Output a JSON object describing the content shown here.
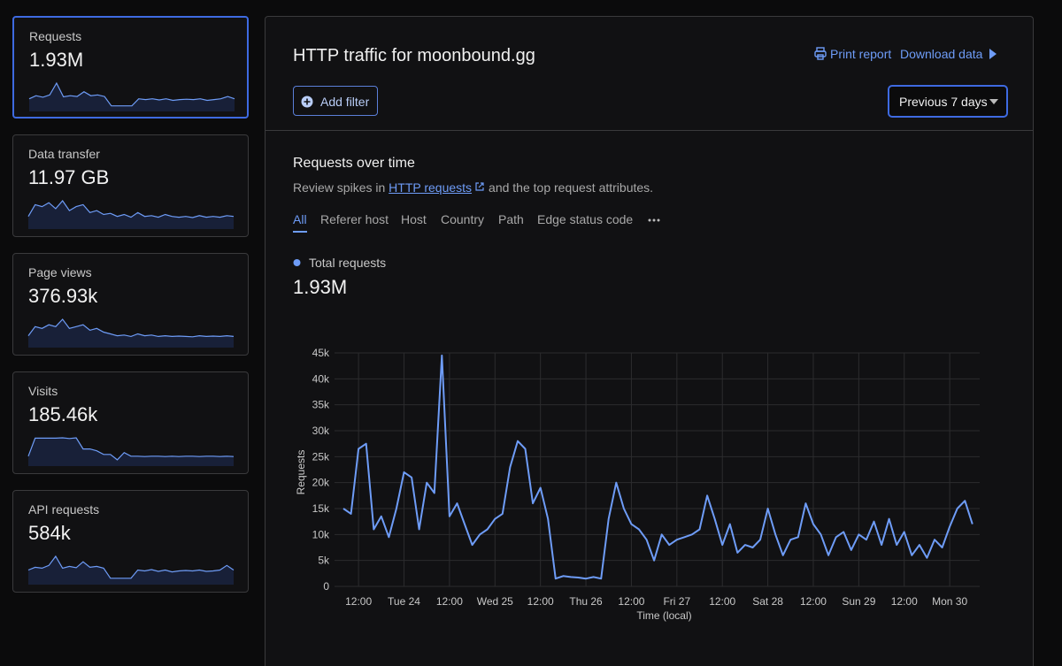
{
  "sidebar": {
    "cards": [
      {
        "label": "Requests",
        "value": "1.93M",
        "sparkline": [
          30,
          38,
          34,
          40,
          70,
          35,
          38,
          36,
          48,
          38,
          40,
          36,
          12,
          12,
          12,
          12,
          30,
          28,
          30,
          27,
          30,
          26,
          28,
          29,
          28,
          30,
          26,
          28,
          30,
          36,
          30
        ]
      },
      {
        "label": "Data transfer",
        "value": "11.97 GB",
        "sparkline": [
          30,
          60,
          55,
          65,
          50,
          70,
          45,
          55,
          60,
          40,
          45,
          35,
          38,
          30,
          35,
          28,
          40,
          30,
          32,
          28,
          35,
          30,
          28,
          30,
          27,
          32,
          28,
          30,
          28,
          32,
          30
        ]
      },
      {
        "label": "Page views",
        "value": "376.93k",
        "sparkline": [
          30,
          55,
          50,
          60,
          55,
          75,
          50,
          55,
          60,
          45,
          50,
          40,
          35,
          30,
          32,
          28,
          35,
          30,
          32,
          28,
          30,
          28,
          29,
          28,
          27,
          30,
          28,
          29,
          28,
          30,
          28
        ]
      },
      {
        "label": "Visits",
        "value": "185.46k",
        "sparkline": [
          25,
          75,
          75,
          75,
          75,
          76,
          74,
          76,
          45,
          45,
          40,
          30,
          30,
          15,
          35,
          25,
          25,
          24,
          25,
          25,
          24,
          25,
          24,
          25,
          25,
          24,
          25,
          25,
          24,
          25,
          24
        ]
      },
      {
        "label": "API requests",
        "value": "584k",
        "sparkline": [
          30,
          36,
          34,
          40,
          60,
          34,
          38,
          35,
          48,
          36,
          38,
          34,
          12,
          12,
          12,
          12,
          30,
          28,
          31,
          27,
          30,
          26,
          28,
          29,
          28,
          30,
          27,
          28,
          30,
          40,
          30
        ]
      }
    ]
  },
  "header": {
    "title": "HTTP traffic for moonbound.gg",
    "print": "Print report",
    "download": "Download data",
    "filter": "Add filter",
    "range": "Previous 7 days"
  },
  "section": {
    "title": "Requests over time",
    "description_pre": "Review spikes in",
    "link": "HTTP requests",
    "description_post": "and the top request attributes.",
    "tabs": [
      "All",
      "Referer host",
      "Host",
      "Country",
      "Path",
      "Edge status code"
    ]
  },
  "chart_data": {
    "type": "line",
    "total": "1.93M",
    "xlabel": "Time (local)",
    "ylabel": "Requests",
    "grid": true,
    "categories": [
      null,
      null,
      "12:00",
      null,
      null,
      null,
      null,
      null,
      "Tue 24",
      null,
      null,
      null,
      null,
      null,
      "12:00",
      null,
      null,
      null,
      null,
      null,
      "Wed 25",
      null,
      null,
      null,
      null,
      null,
      "12:00",
      null,
      null,
      null,
      null,
      null,
      "Thu 26",
      null,
      null,
      null,
      null,
      null,
      "12:00",
      null,
      null,
      null,
      null,
      null,
      "Fri 27",
      null,
      null,
      null,
      null,
      null,
      "12:00",
      null,
      null,
      null,
      null,
      null,
      "Sat 28",
      null,
      null,
      null,
      null,
      null,
      "12:00",
      null,
      null,
      null,
      null,
      null,
      "Sun 29",
      null,
      null,
      null,
      null,
      null,
      "12:00",
      null,
      null,
      null,
      null,
      null,
      "Mon 30",
      null,
      null,
      null
    ],
    "series": [
      {
        "name": "Total requests",
        "color": "#6e9cf7",
        "values": [
          15000,
          14000,
          26500,
          27500,
          11000,
          13500,
          9500,
          15000,
          22000,
          21000,
          11000,
          20000,
          18000,
          44500,
          13500,
          16000,
          12000,
          8000,
          10000,
          11000,
          13000,
          14000,
          23000,
          28000,
          26500,
          16000,
          19000,
          13000,
          1500,
          2000,
          1800,
          1700,
          1500,
          1800,
          1500,
          13000,
          20000,
          15000,
          12000,
          11000,
          9000,
          5000,
          10000,
          8000,
          9000,
          9500,
          10000,
          11000,
          17500,
          13000,
          8000,
          12000,
          6500,
          8000,
          7500,
          9000,
          15000,
          10000,
          6000,
          9000,
          9500,
          16000,
          12000,
          10000,
          6000,
          9500,
          10500,
          7000,
          10000,
          9000,
          12500,
          8000,
          13000,
          8000,
          10500,
          6000,
          8000,
          5500,
          9000,
          7500,
          11500,
          15000,
          16500,
          12000
        ]
      }
    ],
    "ylim": [
      0,
      45000
    ],
    "yticks": [
      0,
      {
        "value": 5000,
        "label": "5k"
      },
      {
        "value": 10000,
        "label": "10k"
      },
      {
        "value": 15000,
        "label": "15k"
      },
      {
        "value": 20000,
        "label": "20k"
      },
      {
        "value": 25000,
        "label": "25k"
      },
      {
        "value": 30000,
        "label": "30k"
      },
      {
        "value": 35000,
        "label": "35k"
      },
      {
        "value": 40000,
        "label": "40k"
      },
      {
        "value": 45000,
        "label": "45k"
      }
    ]
  }
}
